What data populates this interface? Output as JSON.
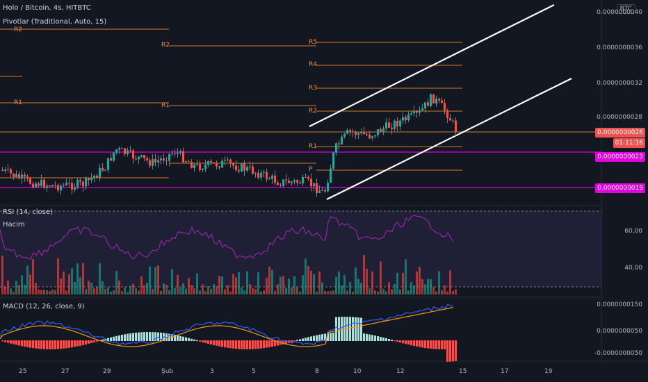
{
  "header": {
    "symbol_line": "Holo / Bitcoin, 4s, HITBTC",
    "pivot_line": "Pivotlar (Traditional, Auto, 15)"
  },
  "currency_badge": "BTC",
  "pivot_labels": {
    "r2_left": "R2",
    "r1_left": "R1",
    "r2_mid": "R2",
    "r1_mid": "R1",
    "r5": "R5",
    "r4": "R4",
    "r3": "R3",
    "r2_right": "R2",
    "r1_right": "R1",
    "p_right": "P"
  },
  "price_axis": {
    "ticks": [
      "0.0000000040",
      "0.0000000036",
      "0.0000000032",
      "0.0000000028"
    ],
    "tags": {
      "last_price": "0.0000000026",
      "countdown": "01:11:16",
      "line_upper": "0.0000000023",
      "line_lower": "0.0000000019"
    },
    "last_price_color": "#ef5350",
    "magenta_color": "#e000e0"
  },
  "rsi": {
    "legend": "RSI (14, close)",
    "volume_legend": "Hacim",
    "ticks": [
      "60,00",
      "40,00"
    ]
  },
  "macd": {
    "legend": "MACD (12, 26, close, 9)",
    "ticks": [
      "0.0000000150",
      "0.0000000050",
      "-0.0000000050"
    ]
  },
  "time_axis": {
    "labels": [
      "25",
      "27",
      "29",
      "Şub",
      "3",
      "5",
      "8",
      "10",
      "12",
      "15",
      "17",
      "19"
    ]
  },
  "colors": {
    "up": "#26a69a",
    "down": "#ef5350",
    "pivot": "#f28c28",
    "rsi_line": "#9c27b0",
    "macd_line": "#2962ff",
    "signal_line": "#ff9800"
  }
}
